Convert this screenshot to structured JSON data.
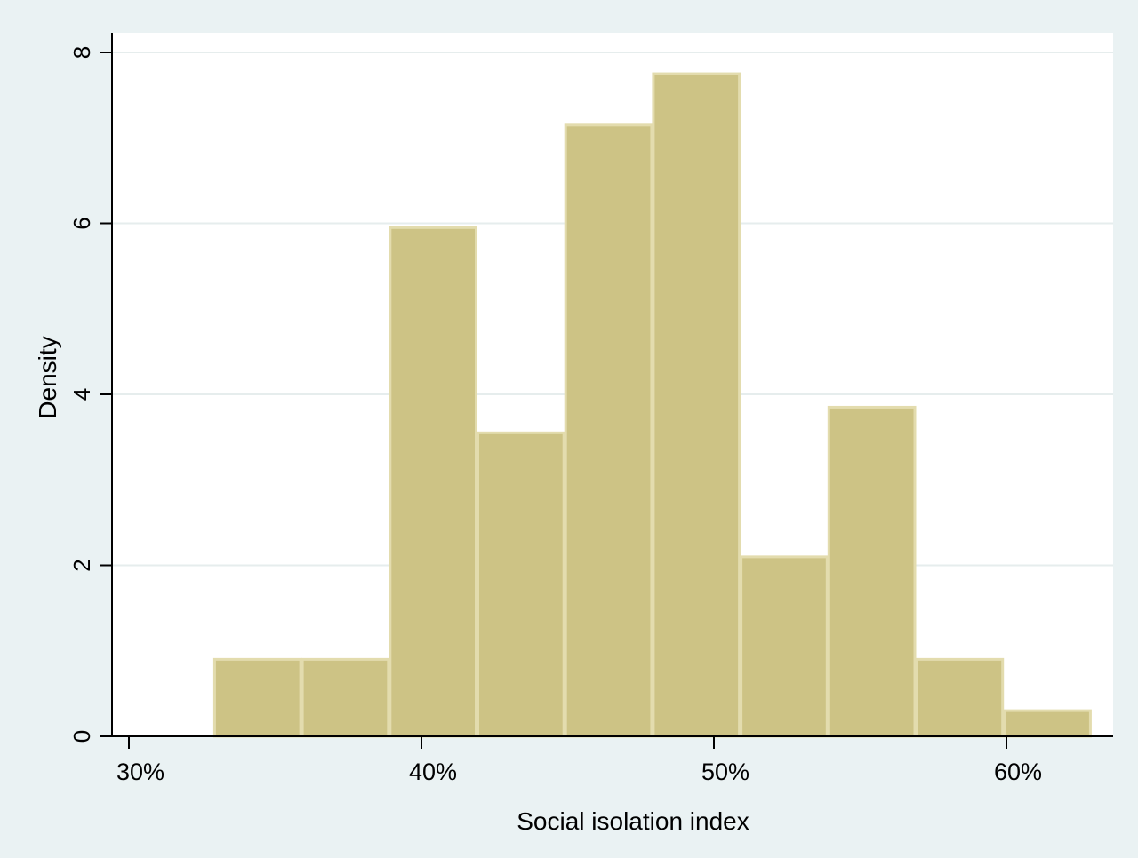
{
  "chart_data": {
    "type": "histogram",
    "title": "",
    "xlabel": "Social isolation  index",
    "ylabel": "Density",
    "xlim": [
      29.6,
      63.8
    ],
    "ylim": [
      0,
      8.2
    ],
    "x_ticks": [
      {
        "value": 30,
        "label": "30%"
      },
      {
        "value": 40,
        "label": "40%"
      },
      {
        "value": 50,
        "label": "50%"
      },
      {
        "value": 60,
        "label": "60%"
      }
    ],
    "y_ticks": [
      {
        "value": 0,
        "label": "0"
      },
      {
        "value": 2,
        "label": "2"
      },
      {
        "value": 4,
        "label": "4"
      },
      {
        "value": 6,
        "label": "6"
      },
      {
        "value": 8,
        "label": "8"
      }
    ],
    "grid": "horizontal",
    "bins": [
      {
        "x0": 32.9,
        "x1": 35.9,
        "density": 0.9
      },
      {
        "x0": 35.9,
        "x1": 38.9,
        "density": 0.9
      },
      {
        "x0": 38.9,
        "x1": 41.9,
        "density": 5.95
      },
      {
        "x0": 41.9,
        "x1": 44.9,
        "density": 3.55
      },
      {
        "x0": 44.9,
        "x1": 47.9,
        "density": 7.15
      },
      {
        "x0": 47.9,
        "x1": 50.9,
        "density": 7.75
      },
      {
        "x0": 50.9,
        "x1": 53.9,
        "density": 2.1
      },
      {
        "x0": 53.9,
        "x1": 56.9,
        "density": 3.85
      },
      {
        "x0": 56.9,
        "x1": 59.9,
        "density": 0.9
      },
      {
        "x0": 59.9,
        "x1": 62.9,
        "density": 0.3
      }
    ],
    "colors": {
      "background": "#eaf2f3",
      "plot_background": "#ffffff",
      "bar_fill": "#cdc385",
      "bar_edge": "#e3dcae",
      "grid": "#e6eded",
      "axis": "#000000"
    }
  }
}
